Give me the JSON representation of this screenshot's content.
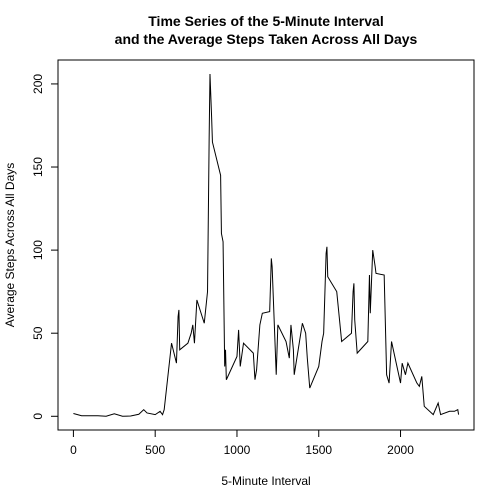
{
  "chart_data": {
    "type": "line",
    "title": [
      "Time Series of the 5-Minute Interval",
      "and the Average Steps Taken Across All Days"
    ],
    "x_label": "5-Minute Interval",
    "y_label": "Average Steps Across All Days",
    "x": [
      0,
      50,
      100,
      150,
      200,
      250,
      300,
      350,
      400,
      430,
      450,
      500,
      530,
      545,
      555,
      600,
      630,
      640,
      645,
      650,
      700,
      720,
      730,
      740,
      755,
      800,
      820,
      830,
      835,
      845,
      850,
      900,
      905,
      915,
      925,
      930,
      935,
      1000,
      1010,
      1020,
      1040,
      1100,
      1110,
      1120,
      1140,
      1155,
      1200,
      1210,
      1215,
      1240,
      1250,
      1300,
      1320,
      1330,
      1345,
      1350,
      1400,
      1420,
      1430,
      1445,
      1500,
      1520,
      1530,
      1545,
      1550,
      1555,
      1610,
      1625,
      1640,
      1700,
      1710,
      1715,
      1720,
      1735,
      1800,
      1810,
      1815,
      1830,
      1845,
      1850,
      1900,
      1915,
      1930,
      1945,
      2000,
      2010,
      2030,
      2045,
      2100,
      2115,
      2130,
      2145,
      2200,
      2230,
      2245,
      2300,
      2330,
      2350,
      2355
    ],
    "series": [
      {
        "name": "steps",
        "color": "#000000",
        "values": [
          1.7,
          0.3,
          0.3,
          0.3,
          0,
          1.5,
          0,
          0.2,
          1.2,
          4,
          2,
          1,
          3,
          1,
          4,
          44,
          32,
          60,
          64,
          40,
          44,
          50,
          55,
          44,
          70,
          56,
          75,
          168,
          206,
          180,
          165,
          145,
          110,
          105,
          30,
          40,
          22,
          36,
          52,
          30,
          44,
          38,
          22,
          28,
          55,
          62,
          63,
          95,
          90,
          25,
          55,
          45,
          35,
          55,
          40,
          25,
          56,
          50,
          35,
          17,
          30,
          45,
          50,
          98,
          102,
          84,
          75,
          60,
          45,
          50,
          75,
          80,
          58,
          38,
          45,
          85,
          62,
          100,
          90,
          86,
          85,
          25,
          20,
          45,
          20,
          32,
          25,
          32,
          20,
          18,
          24,
          6,
          1,
          8,
          1,
          3,
          3,
          4,
          1
        ]
      }
    ],
    "xlim": [
      -94.2,
      2449.2
    ],
    "xticks": [
      0,
      500,
      1000,
      1500,
      2000
    ],
    "ylim": [
      -8.25,
      214.4
    ],
    "yticks": [
      0,
      50,
      100,
      150,
      200
    ]
  }
}
